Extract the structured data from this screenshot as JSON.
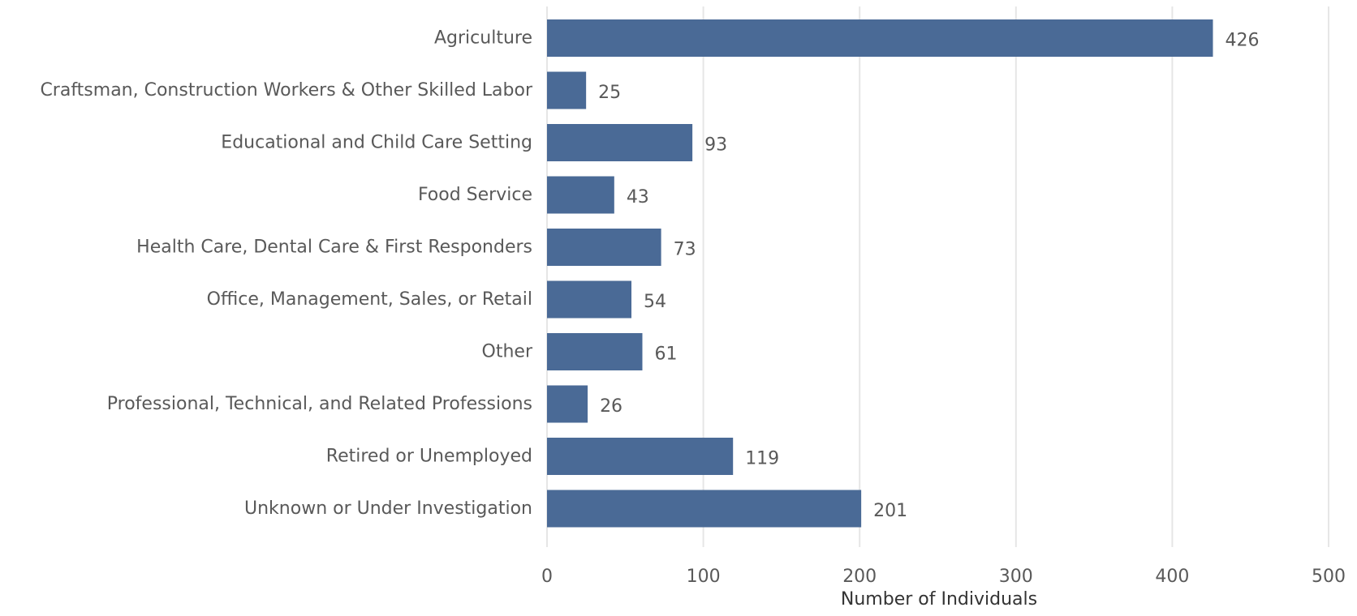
{
  "chart_data": {
    "type": "bar",
    "orientation": "horizontal",
    "categories": [
      "Agriculture",
      "Craftsman, Construction Workers & Other Skilled Labor",
      "Educational and Child Care Setting",
      "Food Service",
      "Health Care, Dental Care & First Responders",
      "Office, Management, Sales, or Retail",
      "Other",
      "Professional, Technical, and Related Professions",
      "Retired or Unemployed",
      "Unknown or Under Investigation"
    ],
    "values": [
      426,
      25,
      93,
      43,
      73,
      54,
      61,
      26,
      119,
      201
    ],
    "xlabel": "Number of Individuals",
    "ylabel": "",
    "xlim": [
      0,
      500
    ],
    "xticks": [
      0,
      100,
      200,
      300,
      400,
      500
    ],
    "grid": true,
    "data_labels": true,
    "bar_color": "#4a6a96"
  }
}
